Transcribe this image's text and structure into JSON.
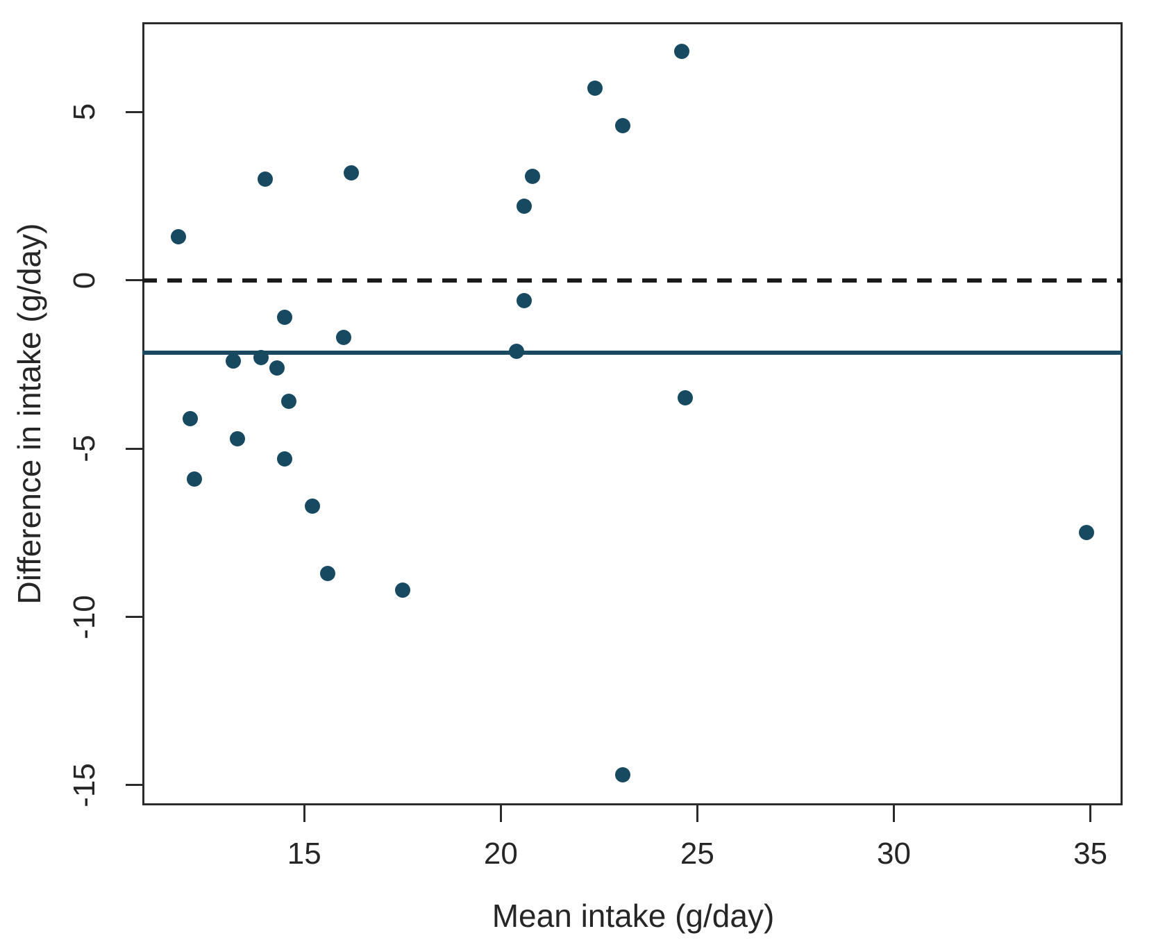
{
  "figure": {
    "background_color": "#ffffff",
    "border_color": "#2b2b2b",
    "text_color": "#262626"
  },
  "chart_data": {
    "type": "scatter",
    "title": "",
    "xlabel": "Mean intake (g/day)",
    "ylabel": "Difference in intake (g/day)",
    "xlim": [
      10.88,
      35.82
    ],
    "ylim": [
      -15.6,
      7.67
    ],
    "x_ticks": [
      15,
      20,
      25,
      30,
      35
    ],
    "y_ticks": [
      5,
      0,
      -5,
      -10,
      -15
    ],
    "grid": "off",
    "legend": "none",
    "point_color": "#174a61",
    "zero_line": {
      "value": 0,
      "style": "dashed",
      "color": "#1a1a1a"
    },
    "mean_line": {
      "value": -2.15,
      "style": "solid",
      "color": "#1b4961"
    },
    "points": [
      [
        11.8,
        1.3
      ],
      [
        12.1,
        -4.1
      ],
      [
        12.2,
        -5.9
      ],
      [
        13.2,
        -2.4
      ],
      [
        13.3,
        -4.7
      ],
      [
        13.9,
        -2.3
      ],
      [
        14.0,
        3.0
      ],
      [
        14.3,
        -2.6
      ],
      [
        14.5,
        -1.1
      ],
      [
        14.5,
        -5.3
      ],
      [
        14.6,
        -3.6
      ],
      [
        15.2,
        -6.7
      ],
      [
        15.6,
        -8.7
      ],
      [
        16.0,
        -1.7
      ],
      [
        16.2,
        3.2
      ],
      [
        17.5,
        -9.2
      ],
      [
        20.4,
        -2.1
      ],
      [
        20.6,
        -0.6
      ],
      [
        20.6,
        2.2
      ],
      [
        20.8,
        3.1
      ],
      [
        22.4,
        5.7
      ],
      [
        23.1,
        4.6
      ],
      [
        23.1,
        -14.7
      ],
      [
        24.6,
        6.8
      ],
      [
        24.7,
        -3.5
      ],
      [
        34.9,
        -7.5
      ]
    ]
  }
}
